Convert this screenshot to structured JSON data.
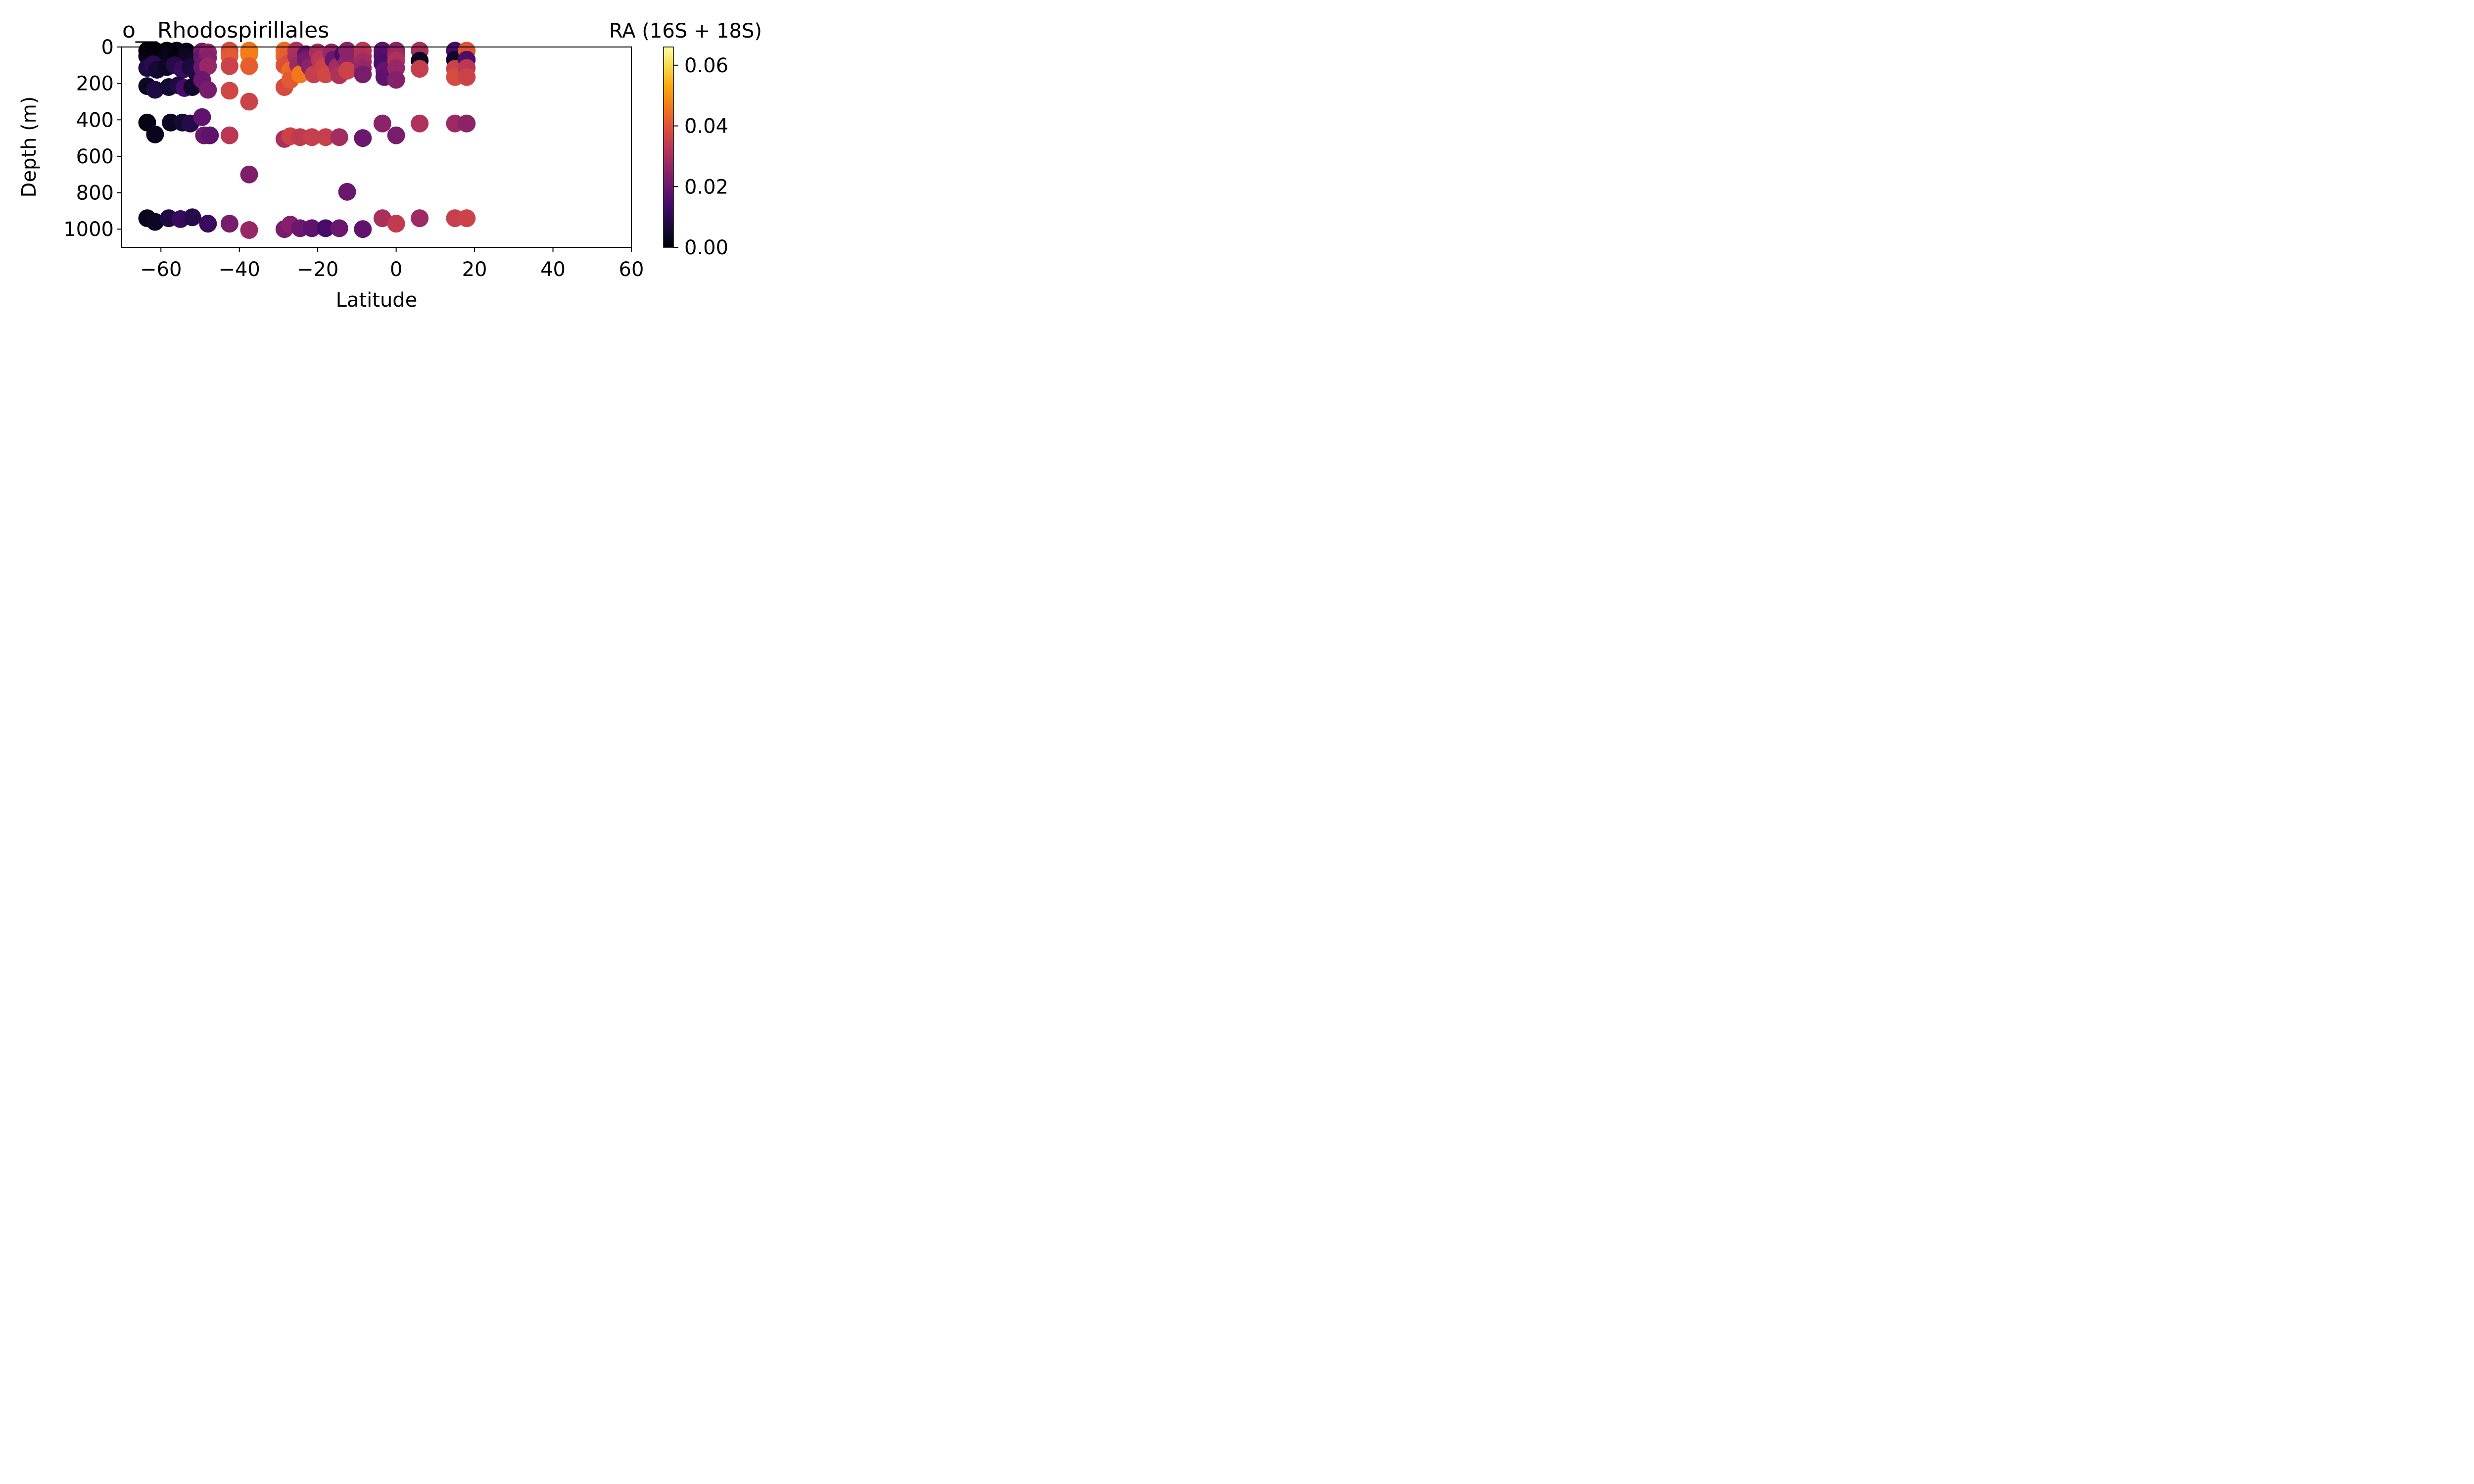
{
  "chart_data": {
    "type": "scatter",
    "title": "o__Rhodospirillales",
    "colorbar_label": "RA (16S + 18S)",
    "xlabel": "Latitude",
    "ylabel": "Depth (m)",
    "xlim": [
      -70,
      60
    ],
    "ylim": [
      1100,
      0
    ],
    "y_inverted": true,
    "xticks": [
      -60,
      -40,
      -20,
      0,
      20,
      40,
      60
    ],
    "xtick_labels": [
      "−60",
      "−40",
      "−20",
      "0",
      "20",
      "40",
      "60"
    ],
    "yticks": [
      0,
      200,
      400,
      600,
      800,
      1000
    ],
    "ytick_labels": [
      "0",
      "200",
      "400",
      "600",
      "800",
      "1000"
    ],
    "colorbar": {
      "colormap": "inferno",
      "range": [
        0,
        0.066
      ],
      "ticks": [
        0.0,
        0.02,
        0.04,
        0.06
      ],
      "tick_labels": [
        "0.00",
        "0.02",
        "0.04",
        "0.06"
      ]
    },
    "grid": false,
    "points": [
      {
        "x": -63.5,
        "y": 20,
        "v": 0.0
      },
      {
        "x": -63.5,
        "y": 50,
        "v": 0.002
      },
      {
        "x": -61.5,
        "y": 20,
        "v": 0.0
      },
      {
        "x": -61.5,
        "y": 50,
        "v": 0.001
      },
      {
        "x": -58.5,
        "y": 20,
        "v": 0.001
      },
      {
        "x": -58.5,
        "y": 50,
        "v": 0.003
      },
      {
        "x": -56.0,
        "y": 20,
        "v": 0.002
      },
      {
        "x": -56.0,
        "y": 50,
        "v": 0.001
      },
      {
        "x": -53.5,
        "y": 25,
        "v": 0.003
      },
      {
        "x": -53.5,
        "y": 55,
        "v": 0.004
      },
      {
        "x": -63.5,
        "y": 115,
        "v": 0.008
      },
      {
        "x": -62.0,
        "y": 95,
        "v": 0.01
      },
      {
        "x": -61.0,
        "y": 125,
        "v": 0.006
      },
      {
        "x": -58.5,
        "y": 110,
        "v": 0.004
      },
      {
        "x": -56.5,
        "y": 100,
        "v": 0.009
      },
      {
        "x": -54.5,
        "y": 125,
        "v": 0.012
      },
      {
        "x": -52.5,
        "y": 110,
        "v": 0.007
      },
      {
        "x": -51.0,
        "y": 140,
        "v": 0.008
      },
      {
        "x": -63.5,
        "y": 215,
        "v": 0.004
      },
      {
        "x": -61.5,
        "y": 235,
        "v": 0.008
      },
      {
        "x": -58.0,
        "y": 220,
        "v": 0.006
      },
      {
        "x": -55.5,
        "y": 210,
        "v": 0.008
      },
      {
        "x": -54.0,
        "y": 225,
        "v": 0.014
      },
      {
        "x": -52.0,
        "y": 220,
        "v": 0.005
      },
      {
        "x": -49.5,
        "y": 25,
        "v": 0.022
      },
      {
        "x": -49.5,
        "y": 55,
        "v": 0.019
      },
      {
        "x": -48.0,
        "y": 30,
        "v": 0.026
      },
      {
        "x": -48.0,
        "y": 60,
        "v": 0.024
      },
      {
        "x": -49.5,
        "y": 110,
        "v": 0.02
      },
      {
        "x": -48.0,
        "y": 105,
        "v": 0.027
      },
      {
        "x": -49.5,
        "y": 180,
        "v": 0.02
      },
      {
        "x": -48.0,
        "y": 235,
        "v": 0.022
      },
      {
        "x": -42.5,
        "y": 20,
        "v": 0.038
      },
      {
        "x": -42.5,
        "y": 50,
        "v": 0.041
      },
      {
        "x": -42.5,
        "y": 105,
        "v": 0.036
      },
      {
        "x": -42.5,
        "y": 240,
        "v": 0.037
      },
      {
        "x": -37.5,
        "y": 20,
        "v": 0.045
      },
      {
        "x": -37.5,
        "y": 40,
        "v": 0.047
      },
      {
        "x": -37.5,
        "y": 105,
        "v": 0.042
      },
      {
        "x": -37.5,
        "y": 300,
        "v": 0.036
      },
      {
        "x": -28.5,
        "y": 20,
        "v": 0.044
      },
      {
        "x": -28.5,
        "y": 50,
        "v": 0.043
      },
      {
        "x": -28.5,
        "y": 100,
        "v": 0.04
      },
      {
        "x": -28.5,
        "y": 220,
        "v": 0.038
      },
      {
        "x": -27.5,
        "y": 40,
        "v": 0.042
      },
      {
        "x": -27.5,
        "y": 90,
        "v": 0.039
      },
      {
        "x": -27.0,
        "y": 130,
        "v": 0.044
      },
      {
        "x": -27.0,
        "y": 180,
        "v": 0.041
      },
      {
        "x": -25.5,
        "y": 20,
        "v": 0.031
      },
      {
        "x": -25.5,
        "y": 50,
        "v": 0.03
      },
      {
        "x": -25.0,
        "y": 100,
        "v": 0.028
      },
      {
        "x": -24.5,
        "y": 150,
        "v": 0.046
      },
      {
        "x": -23.0,
        "y": 40,
        "v": 0.018
      },
      {
        "x": -23.0,
        "y": 70,
        "v": 0.022
      },
      {
        "x": -22.0,
        "y": 110,
        "v": 0.025
      },
      {
        "x": -21.0,
        "y": 150,
        "v": 0.035
      },
      {
        "x": -20.0,
        "y": 30,
        "v": 0.03
      },
      {
        "x": -19.5,
        "y": 70,
        "v": 0.033
      },
      {
        "x": -18.5,
        "y": 110,
        "v": 0.036
      },
      {
        "x": -18.0,
        "y": 150,
        "v": 0.037
      },
      {
        "x": -16.5,
        "y": 30,
        "v": 0.027
      },
      {
        "x": -16.0,
        "y": 70,
        "v": 0.02
      },
      {
        "x": -15.0,
        "y": 110,
        "v": 0.029
      },
      {
        "x": -14.5,
        "y": 155,
        "v": 0.031
      },
      {
        "x": -13.5,
        "y": 40,
        "v": 0.014
      },
      {
        "x": -12.5,
        "y": 80,
        "v": 0.026
      },
      {
        "x": -12.5,
        "y": 130,
        "v": 0.036
      },
      {
        "x": -12.5,
        "y": 20,
        "v": 0.025
      },
      {
        "x": -8.5,
        "y": 20,
        "v": 0.033
      },
      {
        "x": -8.5,
        "y": 50,
        "v": 0.031
      },
      {
        "x": -8.5,
        "y": 80,
        "v": 0.029
      },
      {
        "x": -8.5,
        "y": 115,
        "v": 0.027
      },
      {
        "x": -8.5,
        "y": 150,
        "v": 0.022
      },
      {
        "x": -3.5,
        "y": 20,
        "v": 0.018
      },
      {
        "x": -3.5,
        "y": 50,
        "v": 0.016
      },
      {
        "x": -3.5,
        "y": 90,
        "v": 0.015
      },
      {
        "x": -3.0,
        "y": 130,
        "v": 0.019
      },
      {
        "x": -3.0,
        "y": 165,
        "v": 0.018
      },
      {
        "x": 0.0,
        "y": 20,
        "v": 0.025
      },
      {
        "x": 0.0,
        "y": 45,
        "v": 0.028
      },
      {
        "x": 0.0,
        "y": 75,
        "v": 0.031
      },
      {
        "x": 0.0,
        "y": 115,
        "v": 0.027
      },
      {
        "x": 0.0,
        "y": 180,
        "v": 0.024
      },
      {
        "x": 6.0,
        "y": 20,
        "v": 0.03
      },
      {
        "x": 6.0,
        "y": 75,
        "v": 0.004
      },
      {
        "x": 6.0,
        "y": 120,
        "v": 0.035
      },
      {
        "x": 15.0,
        "y": 20,
        "v": 0.014
      },
      {
        "x": 15.0,
        "y": 70,
        "v": 0.005
      },
      {
        "x": 15.0,
        "y": 120,
        "v": 0.036
      },
      {
        "x": 15.0,
        "y": 165,
        "v": 0.038
      },
      {
        "x": 18.0,
        "y": 20,
        "v": 0.04
      },
      {
        "x": 18.0,
        "y": 70,
        "v": 0.015
      },
      {
        "x": 18.0,
        "y": 115,
        "v": 0.033
      },
      {
        "x": 18.0,
        "y": 165,
        "v": 0.036
      },
      {
        "x": -63.5,
        "y": 415,
        "v": 0.002
      },
      {
        "x": -61.5,
        "y": 480,
        "v": 0.003
      },
      {
        "x": -57.5,
        "y": 415,
        "v": 0.004
      },
      {
        "x": -54.5,
        "y": 415,
        "v": 0.006
      },
      {
        "x": -52.5,
        "y": 420,
        "v": 0.009
      },
      {
        "x": -49.5,
        "y": 385,
        "v": 0.018
      },
      {
        "x": -49.0,
        "y": 485,
        "v": 0.02
      },
      {
        "x": -47.5,
        "y": 485,
        "v": 0.018
      },
      {
        "x": -42.5,
        "y": 485,
        "v": 0.033
      },
      {
        "x": -28.5,
        "y": 505,
        "v": 0.03
      },
      {
        "x": -27.0,
        "y": 490,
        "v": 0.036
      },
      {
        "x": -24.5,
        "y": 495,
        "v": 0.034
      },
      {
        "x": -21.5,
        "y": 495,
        "v": 0.035
      },
      {
        "x": -18.0,
        "y": 495,
        "v": 0.035
      },
      {
        "x": -14.5,
        "y": 495,
        "v": 0.029
      },
      {
        "x": -8.5,
        "y": 500,
        "v": 0.02
      },
      {
        "x": -3.5,
        "y": 420,
        "v": 0.025
      },
      {
        "x": 0.0,
        "y": 485,
        "v": 0.022
      },
      {
        "x": 6.0,
        "y": 420,
        "v": 0.031
      },
      {
        "x": 15.0,
        "y": 420,
        "v": 0.028
      },
      {
        "x": 18.0,
        "y": 420,
        "v": 0.025
      },
      {
        "x": -37.5,
        "y": 700,
        "v": 0.023
      },
      {
        "x": -12.5,
        "y": 795,
        "v": 0.02
      },
      {
        "x": -63.5,
        "y": 940,
        "v": 0.003
      },
      {
        "x": -61.5,
        "y": 960,
        "v": 0.004
      },
      {
        "x": -58.0,
        "y": 940,
        "v": 0.008
      },
      {
        "x": -55.0,
        "y": 945,
        "v": 0.012
      },
      {
        "x": -52.0,
        "y": 935,
        "v": 0.009
      },
      {
        "x": -48.0,
        "y": 970,
        "v": 0.012
      },
      {
        "x": -42.5,
        "y": 970,
        "v": 0.022
      },
      {
        "x": -37.5,
        "y": 1005,
        "v": 0.027
      },
      {
        "x": -28.5,
        "y": 1000,
        "v": 0.022
      },
      {
        "x": -27.0,
        "y": 975,
        "v": 0.024
      },
      {
        "x": -24.5,
        "y": 995,
        "v": 0.02
      },
      {
        "x": -21.5,
        "y": 995,
        "v": 0.018
      },
      {
        "x": -18.0,
        "y": 995,
        "v": 0.014
      },
      {
        "x": -14.5,
        "y": 995,
        "v": 0.02
      },
      {
        "x": -8.5,
        "y": 1000,
        "v": 0.018
      },
      {
        "x": -3.5,
        "y": 940,
        "v": 0.03
      },
      {
        "x": 0.0,
        "y": 970,
        "v": 0.034
      },
      {
        "x": 6.0,
        "y": 940,
        "v": 0.028
      },
      {
        "x": 15.0,
        "y": 940,
        "v": 0.035
      },
      {
        "x": 18.0,
        "y": 940,
        "v": 0.036
      }
    ]
  }
}
